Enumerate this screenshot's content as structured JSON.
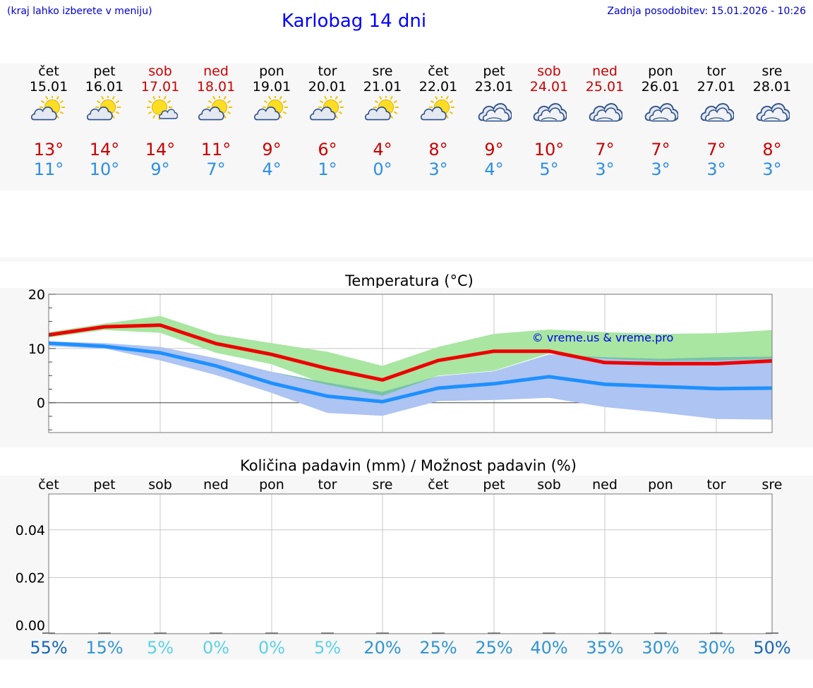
{
  "header": {
    "hint": "(kraj lahko izberete v meniju)",
    "title": "Karlobag 14 dni",
    "updated": "Zadnja posodobitev: 15.01.2026 - 10:26"
  },
  "days": [
    {
      "name": "čet",
      "date": "15.01",
      "max": "13°",
      "min": "11°",
      "icon": "partly-cloudy-icon",
      "weekend": false
    },
    {
      "name": "pet",
      "date": "16.01",
      "max": "14°",
      "min": "10°",
      "icon": "partly-cloudy-icon",
      "weekend": false
    },
    {
      "name": "sob",
      "date": "17.01",
      "max": "14°",
      "min": "9°",
      "icon": "sunny-small-cloud-icon",
      "weekend": true
    },
    {
      "name": "ned",
      "date": "18.01",
      "max": "11°",
      "min": "7°",
      "icon": "partly-cloudy-icon",
      "weekend": true
    },
    {
      "name": "pon",
      "date": "19.01",
      "max": "9°",
      "min": "4°",
      "icon": "partly-cloudy-icon",
      "weekend": false
    },
    {
      "name": "tor",
      "date": "20.01",
      "max": "6°",
      "min": "1°",
      "icon": "partly-cloudy-icon",
      "weekend": false
    },
    {
      "name": "sre",
      "date": "21.01",
      "max": "4°",
      "min": "0°",
      "icon": "partly-cloudy-icon",
      "weekend": false
    },
    {
      "name": "čet",
      "date": "22.01",
      "max": "8°",
      "min": "3°",
      "icon": "partly-cloudy-icon",
      "weekend": false
    },
    {
      "name": "pet",
      "date": "23.01",
      "max": "9°",
      "min": "4°",
      "icon": "cloudy-icon",
      "weekend": false
    },
    {
      "name": "sob",
      "date": "24.01",
      "max": "10°",
      "min": "5°",
      "icon": "cloudy-icon",
      "weekend": true
    },
    {
      "name": "ned",
      "date": "25.01",
      "max": "7°",
      "min": "3°",
      "icon": "cloudy-icon",
      "weekend": true
    },
    {
      "name": "pon",
      "date": "26.01",
      "max": "7°",
      "min": "3°",
      "icon": "cloudy-icon",
      "weekend": false
    },
    {
      "name": "tor",
      "date": "27.01",
      "max": "7°",
      "min": "3°",
      "icon": "cloudy-icon",
      "weekend": false
    },
    {
      "name": "sre",
      "date": "28.01",
      "max": "8°",
      "min": "3°",
      "icon": "cloudy-icon",
      "weekend": false
    }
  ],
  "temperature_chart": {
    "title": "Temperatura (°C)",
    "watermark": "© vreme.us & vreme.pro"
  },
  "precip_chart": {
    "title": "Količina padavin (mm) / Možnost padavin (%)",
    "probabilities": [
      "55%",
      "15%",
      "5%",
      "0%",
      "0%",
      "5%",
      "20%",
      "25%",
      "25%",
      "40%",
      "35%",
      "30%",
      "30%",
      "50%"
    ]
  },
  "colors": {
    "max": "#ee0000",
    "min": "#1e90ff",
    "max_band": "#a8e6a1",
    "min_band": "#aec4f2",
    "overlap_band": "#78c4a6",
    "grid": "#c8c8c8",
    "prob_colors": [
      "#1565b8",
      "#2f95d4",
      "#59d2e6",
      "#59d2e6",
      "#59d2e6",
      "#59d2e6",
      "#2f95d4",
      "#2f95d4",
      "#2f95d4",
      "#2f95d4",
      "#2f95d4",
      "#2f95d4",
      "#2f95d4",
      "#1565b8"
    ]
  },
  "chart_data": [
    {
      "type": "line",
      "title": "Temperatura (°C)",
      "ylim": [
        -5.5,
        20
      ],
      "yticks": [
        0,
        10,
        20
      ],
      "series": [
        {
          "name": "max",
          "values": [
            12.5,
            14,
            14.3,
            10.9,
            8.9,
            6.3,
            4.2,
            7.8,
            9.5,
            9.5,
            7.4,
            7.2,
            7.2,
            7.7
          ]
        },
        {
          "name": "min",
          "values": [
            11,
            10.4,
            9.2,
            6.8,
            3.6,
            1.2,
            0.2,
            2.7,
            3.5,
            4.8,
            3.4,
            3,
            2.6,
            2.7
          ]
        },
        {
          "name": "max_band_upper",
          "values": [
            13,
            14.6,
            16,
            12.6,
            11,
            9.4,
            6.8,
            10.3,
            12.7,
            13.5,
            13,
            12.7,
            12.8,
            13.4
          ]
        },
        {
          "name": "max_band_lower",
          "values": [
            12,
            13.4,
            12.9,
            9.2,
            7.1,
            3.3,
            1.3,
            5,
            5.9,
            9.1,
            8.1,
            7.7,
            7.8,
            8.1
          ]
        },
        {
          "name": "min_band_upper",
          "values": [
            11.3,
            11,
            10.3,
            8.2,
            5.7,
            3.7,
            2,
            4.9,
            5.8,
            8.9,
            8.4,
            8.1,
            8.4,
            8.5
          ]
        },
        {
          "name": "min_band_lower",
          "values": [
            10.4,
            10,
            7.8,
            5.1,
            1.8,
            -1.9,
            -2.4,
            0.3,
            0.5,
            0.9,
            -0.8,
            -1.8,
            -3,
            -3.1
          ]
        }
      ]
    },
    {
      "type": "bar",
      "title": "Količina padavin (mm) / Možnost padavin (%)",
      "categories": [
        "čet",
        "pet",
        "sob",
        "ned",
        "pon",
        "tor",
        "sre",
        "čet",
        "pet",
        "sob",
        "ned",
        "pon",
        "tor",
        "sre"
      ],
      "values": [
        0,
        0,
        0,
        0,
        0,
        0,
        0,
        0,
        0,
        0,
        0,
        0,
        0,
        0
      ],
      "probabilities": [
        55,
        15,
        5,
        0,
        0,
        5,
        20,
        25,
        25,
        40,
        35,
        30,
        30,
        50
      ],
      "ylim": [
        -0.0035,
        0.055
      ],
      "yticks": [
        "0.00",
        "0.02",
        "0.04"
      ]
    }
  ]
}
